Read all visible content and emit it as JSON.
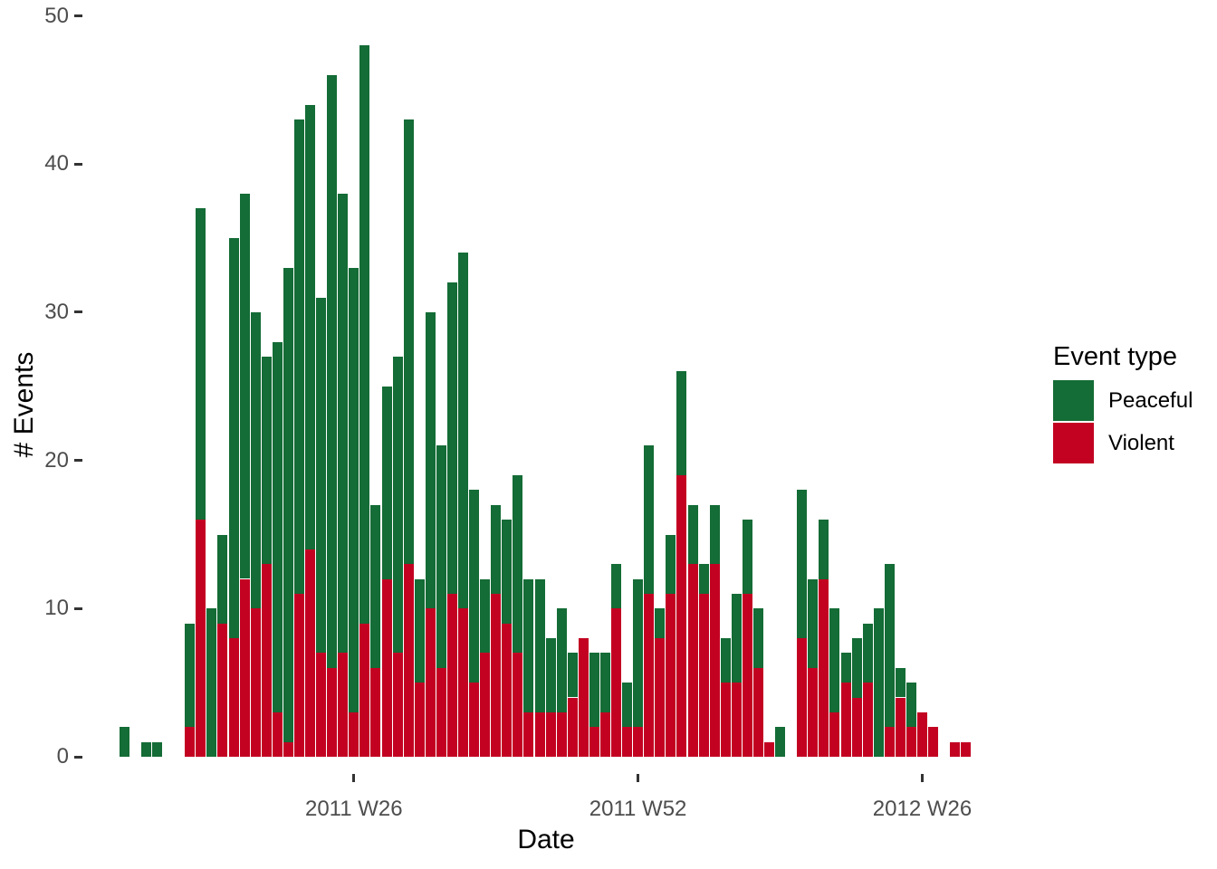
{
  "chart_data": {
    "type": "bar",
    "stacked": true,
    "orientation": "vertical",
    "title": "",
    "xlabel": "Date",
    "ylabel": "# Events",
    "ylim": [
      0,
      50
    ],
    "yticks": [
      0,
      10,
      20,
      30,
      40,
      50
    ],
    "grid": false,
    "x_unit": "consecutive ISO weeks (index 0-77), empty indices are weeks with zero events",
    "xticks": [
      {
        "index": 21,
        "label": "2011 W26"
      },
      {
        "index": 47,
        "label": "2011 W52"
      },
      {
        "index": 73,
        "label": "2012 W26"
      }
    ],
    "legend_title": "Event type",
    "legend_position": "right",
    "series": [
      {
        "name": "Peaceful",
        "color": "#146C36",
        "values": [
          2,
          0,
          1,
          1,
          0,
          0,
          7,
          21,
          10,
          6,
          27,
          26,
          20,
          14,
          25,
          32,
          32,
          30,
          24,
          40,
          31,
          30,
          39,
          11,
          13,
          20,
          30,
          7,
          20,
          15,
          21,
          24,
          13,
          5,
          6,
          7,
          12,
          9,
          9,
          5,
          7,
          3,
          0,
          5,
          4,
          3,
          3,
          10,
          10,
          2,
          4,
          7,
          4,
          2,
          4,
          3,
          6,
          5,
          4,
          0,
          2,
          0,
          10,
          6,
          4,
          7,
          2,
          4,
          4,
          10,
          11,
          2,
          3,
          0,
          0,
          0,
          0,
          0
        ]
      },
      {
        "name": "Violent",
        "color": "#C30222",
        "values": [
          0,
          0,
          0,
          0,
          0,
          0,
          2,
          16,
          0,
          9,
          8,
          12,
          10,
          13,
          3,
          1,
          11,
          14,
          7,
          6,
          7,
          3,
          9,
          6,
          12,
          7,
          13,
          5,
          10,
          6,
          11,
          10,
          5,
          7,
          11,
          9,
          7,
          3,
          3,
          3,
          3,
          4,
          8,
          2,
          3,
          10,
          2,
          2,
          11,
          8,
          11,
          19,
          13,
          11,
          13,
          5,
          5,
          11,
          6,
          1,
          0,
          0,
          8,
          6,
          12,
          3,
          5,
          4,
          5,
          0,
          2,
          4,
          2,
          3,
          2,
          0,
          1,
          1
        ]
      }
    ],
    "totals": [
      2,
      0,
      1,
      1,
      0,
      0,
      9,
      37,
      10,
      15,
      35,
      38,
      30,
      27,
      28,
      33,
      43,
      44,
      31,
      46,
      38,
      33,
      48,
      17,
      25,
      27,
      43,
      12,
      30,
      21,
      32,
      34,
      18,
      12,
      17,
      16,
      19,
      12,
      12,
      8,
      10,
      7,
      8,
      7,
      7,
      13,
      5,
      12,
      21,
      10,
      15,
      26,
      17,
      13,
      17,
      8,
      11,
      16,
      10,
      1,
      2,
      0,
      18,
      12,
      16,
      10,
      7,
      8,
      9,
      10,
      13,
      6,
      5,
      3,
      2,
      0,
      1,
      1
    ]
  },
  "axes": {
    "x_title": "Date",
    "y_title": "# Events",
    "y_tick_labels": [
      "0",
      "10",
      "20",
      "30",
      "40",
      "50"
    ],
    "x_tick_labels": [
      "2011 W26",
      "2011 W52",
      "2012 W26"
    ]
  },
  "legend": {
    "title": "Event type",
    "items": [
      {
        "label": "Peaceful",
        "color": "#146C36"
      },
      {
        "label": "Violent",
        "color": "#C30222"
      }
    ]
  },
  "colors": {
    "peaceful_green": "#146C36",
    "violent_red": "#C30222",
    "tick_text": "#4d4d4d",
    "tick_mark": "#333333",
    "title_text": "#000000",
    "background": "#ffffff"
  }
}
